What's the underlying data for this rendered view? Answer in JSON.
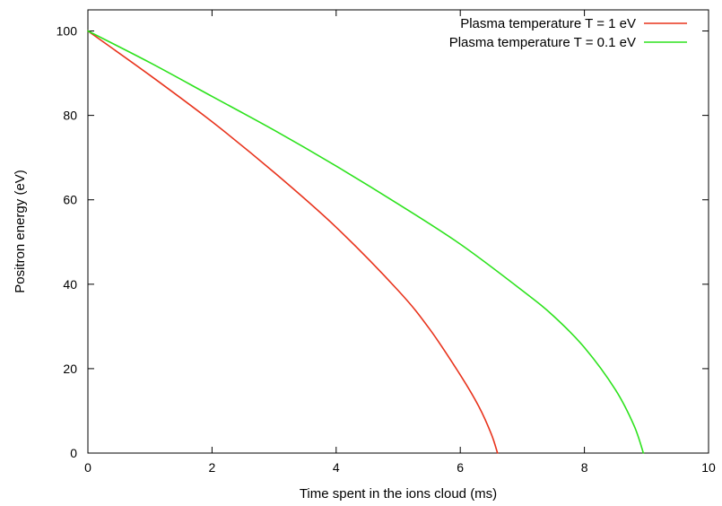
{
  "chart_data": {
    "type": "line",
    "title": "",
    "xlabel": "Time spent in the ions cloud (ms)",
    "ylabel": "Positron energy (eV)",
    "xlim": [
      0,
      10
    ],
    "ylim": [
      0,
      105
    ],
    "xticks": [
      0,
      2,
      4,
      6,
      8,
      10
    ],
    "yticks": [
      0,
      20,
      40,
      60,
      80,
      100
    ],
    "grid": false,
    "legend_position": "top-right",
    "series": [
      {
        "name": "Plasma temperature T = 1 eV",
        "color": "#e8331c",
        "x": [
          0,
          1,
          2,
          3,
          4,
          5,
          5.5,
          6,
          6.3,
          6.5,
          6.6
        ],
        "y": [
          100,
          89.5,
          78.5,
          66.5,
          53.5,
          38.5,
          29.5,
          18.5,
          11,
          4.5,
          0
        ]
      },
      {
        "name": "Plasma temperature T = 0.1 eV",
        "color": "#2de21d",
        "x": [
          0,
          1,
          2,
          3,
          4,
          5,
          6,
          7,
          7.5,
          8,
          8.5,
          8.8,
          8.95
        ],
        "y": [
          100,
          92.5,
          84.5,
          76.5,
          68,
          59,
          49.5,
          38.5,
          32.5,
          25,
          15,
          6.5,
          0
        ]
      }
    ]
  }
}
